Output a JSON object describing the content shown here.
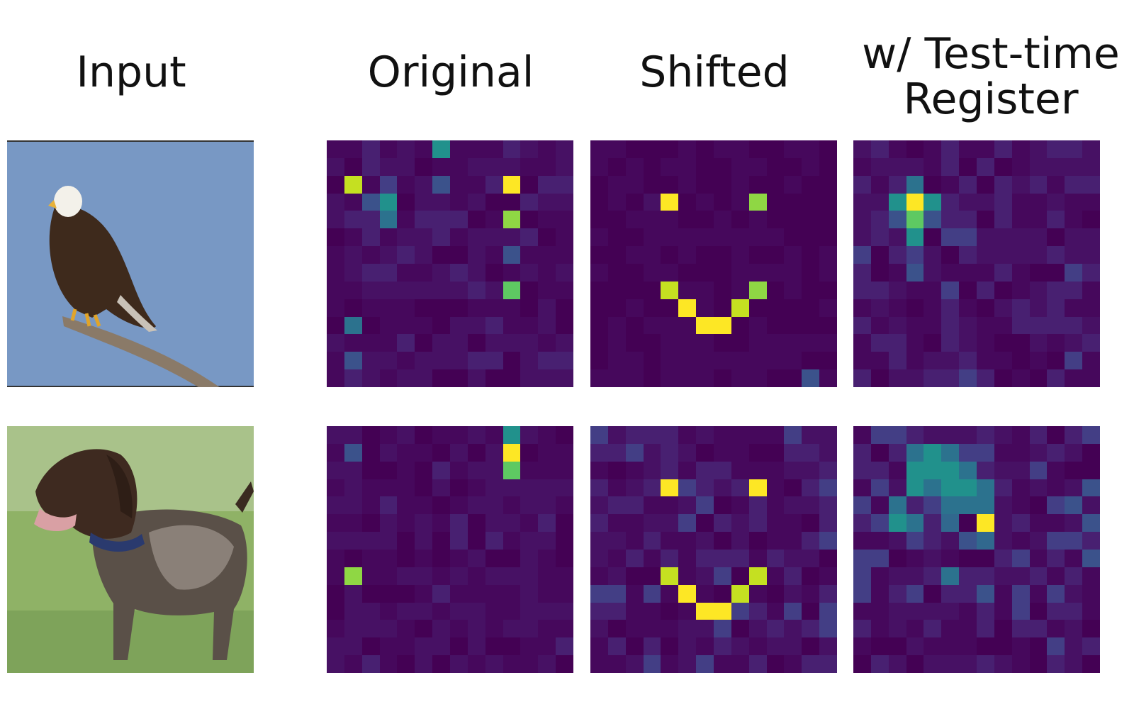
{
  "columns": {
    "input": "Input",
    "original": "Original",
    "shifted": "Shifted",
    "register_line1": "w/ Test-time",
    "register_line2": "Register"
  },
  "rows": [
    {
      "image": "eagle-photo",
      "label": "Bald eagle perched on a branch"
    },
    {
      "image": "dog-photo",
      "label": "German shorthaired pointer in grass"
    }
  ],
  "colormap": "viridis",
  "colors": {
    "dark": "#440154",
    "yellow": "#fde725",
    "green": "#8fd744",
    "teal": "#35b779",
    "blue": "#31688e"
  }
}
